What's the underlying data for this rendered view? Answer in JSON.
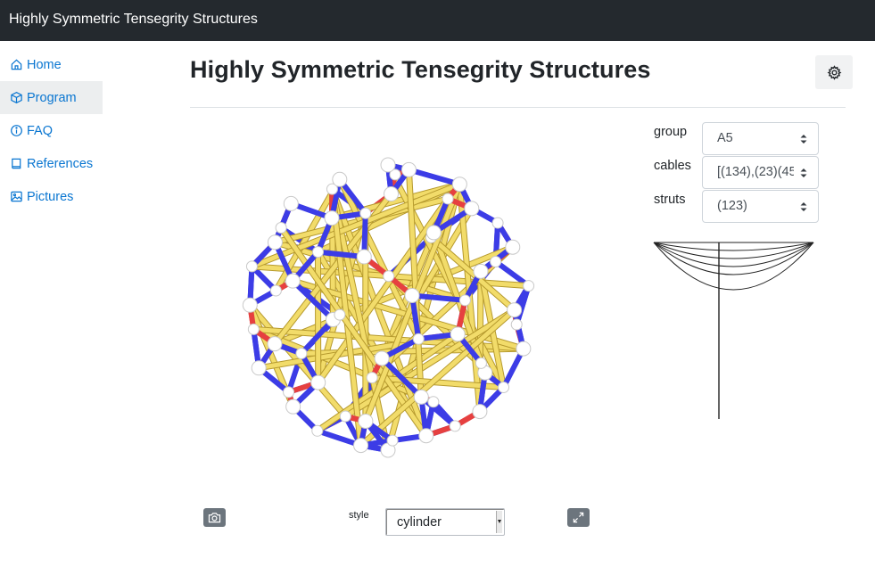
{
  "app": {
    "brand": "Highly Symmetric Tensegrity Structures"
  },
  "sidebar": {
    "items": [
      {
        "label": "Home",
        "icon": "home-icon",
        "active": false
      },
      {
        "label": "Program",
        "icon": "cube-icon",
        "active": true
      },
      {
        "label": "FAQ",
        "icon": "info-icon",
        "active": false
      },
      {
        "label": "References",
        "icon": "book-icon",
        "active": false
      },
      {
        "label": "Pictures",
        "icon": "image-icon",
        "active": false
      }
    ]
  },
  "main": {
    "title": "Highly Symmetric Tensegrity Structures",
    "settings_icon": "gear-icon"
  },
  "controls": {
    "group": {
      "label": "group",
      "value": "A5"
    },
    "cables": {
      "label": "cables",
      "value": "[(134),(23)(45"
    },
    "struts": {
      "label": "struts",
      "value": "(123)"
    }
  },
  "viewer": {
    "style_label": "style",
    "style_value": "cylinder",
    "camera_icon": "camera-icon",
    "fullscreen_icon": "expand-icon",
    "colors": {
      "strut": "#f2dc6a",
      "strut_dark": "#b69a2e",
      "cable_blue": "#3c3ce6",
      "cable_red": "#e64040",
      "node": "#ffffff"
    }
  },
  "colors": {
    "accent": "#0a76d1",
    "topbar": "#24292e"
  }
}
